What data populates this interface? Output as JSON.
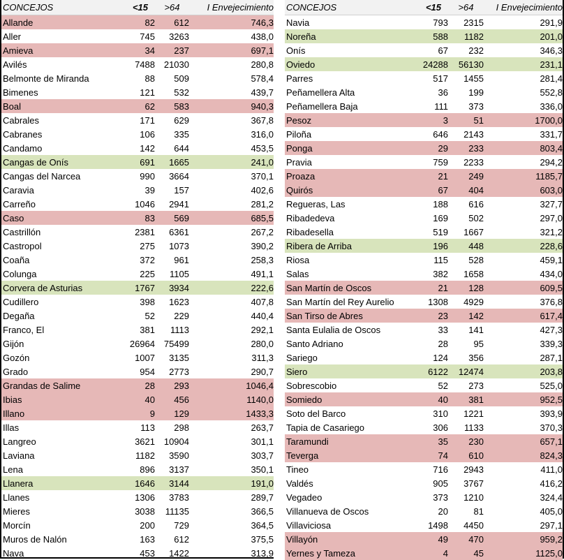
{
  "headers": {
    "concejos": "CONCEJOS",
    "under15": "<15",
    "over64": ">64",
    "index": "I Envejecimiento"
  },
  "colors": {
    "high_aging": "#e6b8b7",
    "low_aging": "#d8e4bc",
    "header_bg": "#f2f2f2"
  },
  "left": [
    {
      "name": "Allande",
      "u15": "82",
      "o64": "612",
      "ie": "746,3",
      "hl": "red"
    },
    {
      "name": "Aller",
      "u15": "745",
      "o64": "3263",
      "ie": "438,0",
      "hl": ""
    },
    {
      "name": "Amieva",
      "u15": "34",
      "o64": "237",
      "ie": "697,1",
      "hl": "red"
    },
    {
      "name": "Avilés",
      "u15": "7488",
      "o64": "21030",
      "ie": "280,8",
      "hl": ""
    },
    {
      "name": "Belmonte de Miranda",
      "u15": "88",
      "o64": "509",
      "ie": "578,4",
      "hl": ""
    },
    {
      "name": "Bimenes",
      "u15": "121",
      "o64": "532",
      "ie": "439,7",
      "hl": ""
    },
    {
      "name": "Boal",
      "u15": "62",
      "o64": "583",
      "ie": "940,3",
      "hl": "red"
    },
    {
      "name": "Cabrales",
      "u15": "171",
      "o64": "629",
      "ie": "367,8",
      "hl": ""
    },
    {
      "name": "Cabranes",
      "u15": "106",
      "o64": "335",
      "ie": "316,0",
      "hl": ""
    },
    {
      "name": "Candamo",
      "u15": "142",
      "o64": "644",
      "ie": "453,5",
      "hl": ""
    },
    {
      "name": "Cangas de Onís",
      "u15": "691",
      "o64": "1665",
      "ie": "241,0",
      "hl": "green"
    },
    {
      "name": "Cangas del Narcea",
      "u15": "990",
      "o64": "3664",
      "ie": "370,1",
      "hl": ""
    },
    {
      "name": "Caravia",
      "u15": "39",
      "o64": "157",
      "ie": "402,6",
      "hl": ""
    },
    {
      "name": "Carreño",
      "u15": "1046",
      "o64": "2941",
      "ie": "281,2",
      "hl": ""
    },
    {
      "name": "Caso",
      "u15": "83",
      "o64": "569",
      "ie": "685,5",
      "hl": "red"
    },
    {
      "name": "Castrillón",
      "u15": "2381",
      "o64": "6361",
      "ie": "267,2",
      "hl": ""
    },
    {
      "name": "Castropol",
      "u15": "275",
      "o64": "1073",
      "ie": "390,2",
      "hl": ""
    },
    {
      "name": "Coaña",
      "u15": "372",
      "o64": "961",
      "ie": "258,3",
      "hl": ""
    },
    {
      "name": "Colunga",
      "u15": "225",
      "o64": "1105",
      "ie": "491,1",
      "hl": ""
    },
    {
      "name": "Corvera de Asturias",
      "u15": "1767",
      "o64": "3934",
      "ie": "222,6",
      "hl": "green"
    },
    {
      "name": "Cudillero",
      "u15": "398",
      "o64": "1623",
      "ie": "407,8",
      "hl": ""
    },
    {
      "name": "Degaña",
      "u15": "52",
      "o64": "229",
      "ie": "440,4",
      "hl": ""
    },
    {
      "name": "Franco, El",
      "u15": "381",
      "o64": "1113",
      "ie": "292,1",
      "hl": ""
    },
    {
      "name": "Gijón",
      "u15": "26964",
      "o64": "75499",
      "ie": "280,0",
      "hl": ""
    },
    {
      "name": "Gozón",
      "u15": "1007",
      "o64": "3135",
      "ie": "311,3",
      "hl": ""
    },
    {
      "name": "Grado",
      "u15": "954",
      "o64": "2773",
      "ie": "290,7",
      "hl": ""
    },
    {
      "name": "Grandas de Salime",
      "u15": "28",
      "o64": "293",
      "ie": "1046,4",
      "hl": "red"
    },
    {
      "name": "Ibias",
      "u15": "40",
      "o64": "456",
      "ie": "1140,0",
      "hl": "red"
    },
    {
      "name": "Illano",
      "u15": "9",
      "o64": "129",
      "ie": "1433,3",
      "hl": "red"
    },
    {
      "name": "Illas",
      "u15": "113",
      "o64": "298",
      "ie": "263,7",
      "hl": ""
    },
    {
      "name": "Langreo",
      "u15": "3621",
      "o64": "10904",
      "ie": "301,1",
      "hl": ""
    },
    {
      "name": "Laviana",
      "u15": "1182",
      "o64": "3590",
      "ie": "303,7",
      "hl": ""
    },
    {
      "name": "Lena",
      "u15": "896",
      "o64": "3137",
      "ie": "350,1",
      "hl": ""
    },
    {
      "name": "Llanera",
      "u15": "1646",
      "o64": "3144",
      "ie": "191,0",
      "hl": "green"
    },
    {
      "name": "Llanes",
      "u15": "1306",
      "o64": "3783",
      "ie": "289,7",
      "hl": ""
    },
    {
      "name": "Mieres",
      "u15": "3038",
      "o64": "11135",
      "ie": "366,5",
      "hl": ""
    },
    {
      "name": "Morcín",
      "u15": "200",
      "o64": "729",
      "ie": "364,5",
      "hl": ""
    },
    {
      "name": "Muros de Nalón",
      "u15": "163",
      "o64": "612",
      "ie": "375,5",
      "hl": ""
    },
    {
      "name": "Nava",
      "u15": "453",
      "o64": "1422",
      "ie": "313,9",
      "hl": ""
    }
  ],
  "right": [
    {
      "name": "Navia",
      "u15": "793",
      "o64": "2315",
      "ie": "291,9",
      "hl": ""
    },
    {
      "name": "Noreña",
      "u15": "588",
      "o64": "1182",
      "ie": "201,0",
      "hl": "green"
    },
    {
      "name": "Onís",
      "u15": "67",
      "o64": "232",
      "ie": "346,3",
      "hl": ""
    },
    {
      "name": "Oviedo",
      "u15": "24288",
      "o64": "56130",
      "ie": "231,1",
      "hl": "green"
    },
    {
      "name": "Parres",
      "u15": "517",
      "o64": "1455",
      "ie": "281,4",
      "hl": ""
    },
    {
      "name": "Peñamellera Alta",
      "u15": "36",
      "o64": "199",
      "ie": "552,8",
      "hl": ""
    },
    {
      "name": "Peñamellera Baja",
      "u15": "111",
      "o64": "373",
      "ie": "336,0",
      "hl": ""
    },
    {
      "name": "Pesoz",
      "u15": "3",
      "o64": "51",
      "ie": "1700,0",
      "hl": "red"
    },
    {
      "name": "Piloña",
      "u15": "646",
      "o64": "2143",
      "ie": "331,7",
      "hl": ""
    },
    {
      "name": "Ponga",
      "u15": "29",
      "o64": "233",
      "ie": "803,4",
      "hl": "red"
    },
    {
      "name": "Pravia",
      "u15": "759",
      "o64": "2233",
      "ie": "294,2",
      "hl": ""
    },
    {
      "name": "Proaza",
      "u15": "21",
      "o64": "249",
      "ie": "1185,7",
      "hl": "red"
    },
    {
      "name": "Quirós",
      "u15": "67",
      "o64": "404",
      "ie": "603,0",
      "hl": "red"
    },
    {
      "name": "Regueras, Las",
      "u15": "188",
      "o64": "616",
      "ie": "327,7",
      "hl": ""
    },
    {
      "name": "Ribadedeva",
      "u15": "169",
      "o64": "502",
      "ie": "297,0",
      "hl": ""
    },
    {
      "name": "Ribadesella",
      "u15": "519",
      "o64": "1667",
      "ie": "321,2",
      "hl": ""
    },
    {
      "name": "Ribera de Arriba",
      "u15": "196",
      "o64": "448",
      "ie": "228,6",
      "hl": "green"
    },
    {
      "name": "Riosa",
      "u15": "115",
      "o64": "528",
      "ie": "459,1",
      "hl": ""
    },
    {
      "name": "Salas",
      "u15": "382",
      "o64": "1658",
      "ie": "434,0",
      "hl": ""
    },
    {
      "name": "San Martín de Oscos",
      "u15": "21",
      "o64": "128",
      "ie": "609,5",
      "hl": "red"
    },
    {
      "name": "San Martín del Rey Aurelio",
      "u15": "1308",
      "o64": "4929",
      "ie": "376,8",
      "hl": ""
    },
    {
      "name": "San Tirso de Abres",
      "u15": "23",
      "o64": "142",
      "ie": "617,4",
      "hl": "red"
    },
    {
      "name": "Santa Eulalia de Oscos",
      "u15": "33",
      "o64": "141",
      "ie": "427,3",
      "hl": ""
    },
    {
      "name": "Santo Adriano",
      "u15": "28",
      "o64": "95",
      "ie": "339,3",
      "hl": ""
    },
    {
      "name": "Sariego",
      "u15": "124",
      "o64": "356",
      "ie": "287,1",
      "hl": ""
    },
    {
      "name": "Siero",
      "u15": "6122",
      "o64": "12474",
      "ie": "203,8",
      "hl": "green"
    },
    {
      "name": "Sobrescobio",
      "u15": "52",
      "o64": "273",
      "ie": "525,0",
      "hl": ""
    },
    {
      "name": "Somiedo",
      "u15": "40",
      "o64": "381",
      "ie": "952,5",
      "hl": "red"
    },
    {
      "name": "Soto del Barco",
      "u15": "310",
      "o64": "1221",
      "ie": "393,9",
      "hl": ""
    },
    {
      "name": "Tapia de Casariego",
      "u15": "306",
      "o64": "1133",
      "ie": "370,3",
      "hl": ""
    },
    {
      "name": "Taramundi",
      "u15": "35",
      "o64": "230",
      "ie": "657,1",
      "hl": "red"
    },
    {
      "name": "Teverga",
      "u15": "74",
      "o64": "610",
      "ie": "824,3",
      "hl": "red"
    },
    {
      "name": "Tineo",
      "u15": "716",
      "o64": "2943",
      "ie": "411,0",
      "hl": ""
    },
    {
      "name": "Valdés",
      "u15": "905",
      "o64": "3767",
      "ie": "416,2",
      "hl": ""
    },
    {
      "name": "Vegadeo",
      "u15": "373",
      "o64": "1210",
      "ie": "324,4",
      "hl": ""
    },
    {
      "name": "Villanueva de Oscos",
      "u15": "20",
      "o64": "81",
      "ie": "405,0",
      "hl": ""
    },
    {
      "name": "Villaviciosa",
      "u15": "1498",
      "o64": "4450",
      "ie": "297,1",
      "hl": ""
    },
    {
      "name": "Villayón",
      "u15": "49",
      "o64": "470",
      "ie": "959,2",
      "hl": "red"
    },
    {
      "name": "Yernes y Tameza",
      "u15": "4",
      "o64": "45",
      "ie": "1125,0",
      "hl": "red"
    }
  ]
}
